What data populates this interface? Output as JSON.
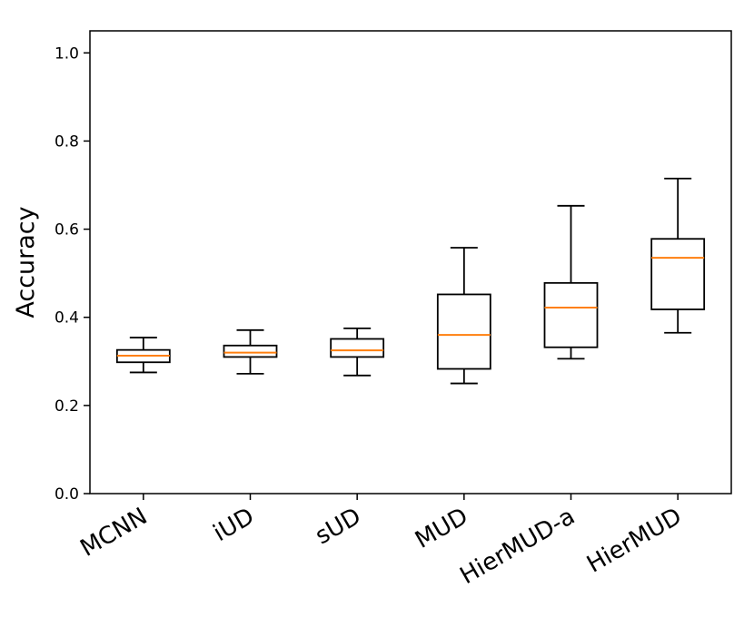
{
  "chart_data": {
    "type": "box",
    "title": "",
    "xlabel": "",
    "ylabel": "Accuracy",
    "ylim": [
      0.0,
      1.05
    ],
    "yticks": [
      0.0,
      0.2,
      0.4,
      0.6,
      0.8,
      1.0
    ],
    "ytick_labels": [
      "0.0",
      "0.2",
      "0.4",
      "0.6",
      "0.8",
      "1.0"
    ],
    "grid": false,
    "categories": [
      "MCNN",
      "iUD",
      "sUD",
      "MUD",
      "HierMUD-a",
      "HierMUD"
    ],
    "series": [
      {
        "name": "MCNN",
        "whisker_low": 0.275,
        "q1": 0.298,
        "median": 0.313,
        "q3": 0.326,
        "whisker_high": 0.354
      },
      {
        "name": "iUD",
        "whisker_low": 0.272,
        "q1": 0.31,
        "median": 0.32,
        "q3": 0.336,
        "whisker_high": 0.371
      },
      {
        "name": "sUD",
        "whisker_low": 0.268,
        "q1": 0.31,
        "median": 0.325,
        "q3": 0.351,
        "whisker_high": 0.375
      },
      {
        "name": "MUD",
        "whisker_low": 0.25,
        "q1": 0.283,
        "median": 0.36,
        "q3": 0.452,
        "whisker_high": 0.558
      },
      {
        "name": "HierMUD-a",
        "whisker_low": 0.306,
        "q1": 0.332,
        "median": 0.422,
        "q3": 0.478,
        "whisker_high": 0.653
      },
      {
        "name": "HierMUD",
        "whisker_low": 0.365,
        "q1": 0.418,
        "median": 0.535,
        "q3": 0.578,
        "whisker_high": 0.715
      }
    ],
    "colors": {
      "box": "#000000",
      "median": "#ff7f0e",
      "axis": "#000000"
    }
  }
}
